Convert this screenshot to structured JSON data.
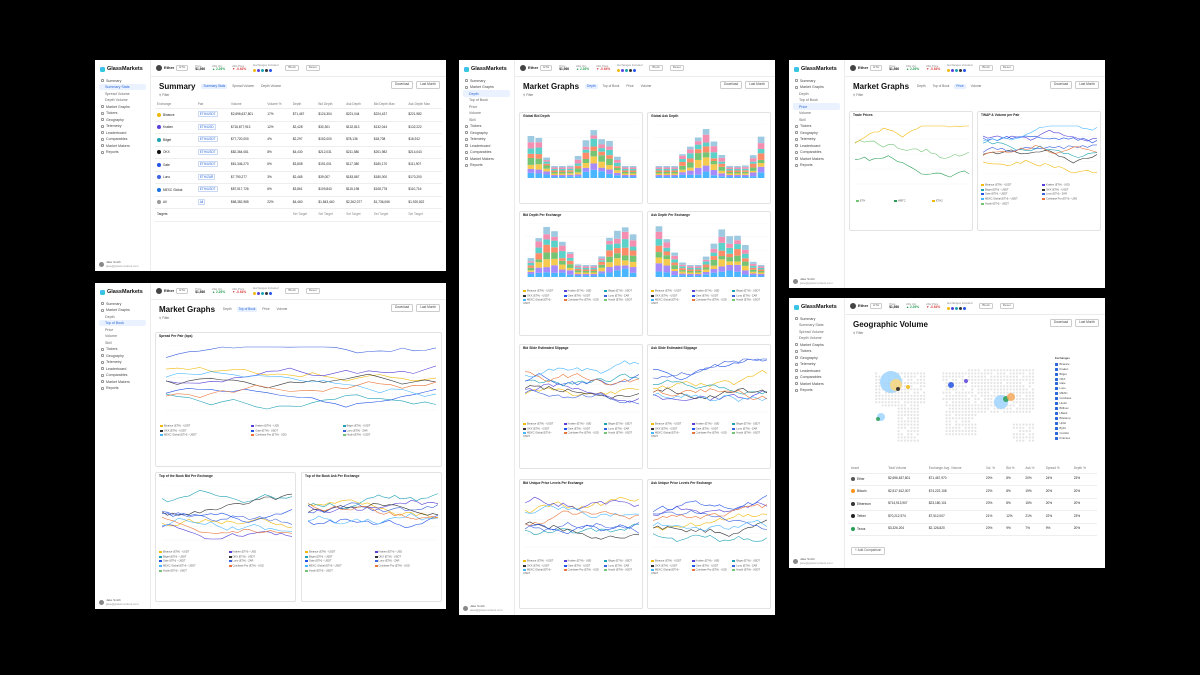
{
  "app": {
    "name": "GlassMarkets",
    "user": "Jake Smith",
    "user_sub": "jake@glassmarkets.com"
  },
  "topbar": {
    "asset": "Ether",
    "asset_tag": "ETH",
    "price_label": "Price",
    "price": "$1,566",
    "change_label": "24H Vol.",
    "change": "▲ 2.26%",
    "vol_label": "24H Price",
    "vol": "▼ -0.64%",
    "exch_label": "Exchanges Included",
    "extra": [
      "Block",
      "Reset"
    ]
  },
  "nav": [
    {
      "label": "Summary"
    },
    {
      "label": "Summary Stats",
      "sub": true
    },
    {
      "label": "Spread Volume",
      "sub": true
    },
    {
      "label": "Depth Volume",
      "sub": true
    },
    {
      "label": "Market Graphs"
    },
    {
      "label": "Tickers"
    },
    {
      "label": "Geography"
    },
    {
      "label": "Telemetry"
    },
    {
      "label": "Leaderboard"
    },
    {
      "label": "Comparables"
    },
    {
      "label": "Market Makers"
    },
    {
      "label": "Reports"
    }
  ],
  "nav_graphs": [
    {
      "label": "Summary"
    },
    {
      "label": "Market Graphs"
    },
    {
      "label": "Depth",
      "sub": true
    },
    {
      "label": "Top of Book",
      "sub": true
    },
    {
      "label": "Price",
      "sub": true
    },
    {
      "label": "Volume",
      "sub": true
    },
    {
      "label": "Skill",
      "sub": true
    },
    {
      "label": "Tickers"
    },
    {
      "label": "Geography"
    },
    {
      "label": "Telemetry"
    },
    {
      "label": "Leaderboard"
    },
    {
      "label": "Comparables"
    },
    {
      "label": "Market Makers"
    },
    {
      "label": "Reports"
    }
  ],
  "buttons": {
    "download": "Download",
    "last_month": "Last Month",
    "filter": "Filter"
  },
  "summary": {
    "title": "Summary",
    "tabs": [
      "Summary Stats",
      "Spread Volume",
      "Depth Volume"
    ],
    "headers": [
      "Exchange",
      "Pair",
      "Volume",
      "Volume %",
      "Depth",
      "Bid Depth",
      "Ask Depth",
      "Bid Depth Max",
      "Ask Depth Max"
    ],
    "rows": [
      {
        "name": "Binance",
        "pair": "ETH/USDT",
        "volume": "$2,696,637,801",
        "pct": "17%",
        "depth": "$71,467",
        "bid": "$124,304",
        "ask": "$221,044",
        "bmax": "$224,437",
        "amax": "$221,982",
        "color": "#f0b90b"
      },
      {
        "name": "Kraken",
        "pair": "ETH/USD",
        "volume": "$716,877,913",
        "pct": "12%",
        "depth": "$2,428",
        "bid": "$30,301",
        "ask": "$132,813",
        "bmax": "$132,044",
        "amax": "$132,222",
        "color": "#5741d9"
      },
      {
        "name": "Bitget",
        "pair": "ETH/USDT",
        "volume": "$77,720,000",
        "pct": "4%",
        "depth": "$2,297",
        "bid": "$152,000",
        "ask": "$78,136",
        "bmax": "$18,708",
        "amax": "$18,912",
        "color": "#1da2b4"
      },
      {
        "name": "OKX",
        "pair": "ETH/USDT",
        "volume": "$82,364,061",
        "pct": "8%",
        "depth": "$4,430",
        "bid": "$212,031",
        "ask": "$211,580",
        "bmax": "$201,982",
        "amax": "$214,043",
        "color": "#111111"
      },
      {
        "name": "Gate",
        "pair": "ETH/USDT",
        "volume": "$61,346,270",
        "pct": "6%",
        "depth": "$3,808",
        "bid": "$191,001",
        "ask": "$117,380",
        "bmax": "$180,170",
        "amax": "$111,907",
        "color": "#2354e6"
      },
      {
        "name": "Luno",
        "pair": "ETH/ZAR",
        "volume": "$7,790,277",
        "pct": "3%",
        "depth": "$2,465",
        "bid": "$39,007",
        "ask": "$183,867",
        "bmax": "$180,000",
        "amax": "$170,200",
        "color": "#3d63dd"
      },
      {
        "name": "MEXC Global",
        "pair": "ETH/USDT",
        "volume": "$87,517,726",
        "pct": "6%",
        "depth": "$3,861",
        "bid": "$109,843",
        "ask": "$115,198",
        "bmax": "$108,778",
        "amax": "$110,716",
        "color": "#1972e2"
      },
      {
        "name": "All",
        "pair": "All",
        "volume": "$68,382,985",
        "pct": "22%",
        "depth": "$4,460",
        "bid": "$1,843,440",
        "ask": "$2,262,077",
        "bmax": "$1,736,066",
        "amax": "$1,920,822",
        "color": "#999999"
      }
    ],
    "targets_label": "Targets",
    "set_target": "Set Target"
  },
  "graphs": {
    "title": "Market Graphs",
    "tabs": [
      "Depth",
      "Top of Book",
      "Price",
      "Volume"
    ],
    "depth_panels": [
      "Global Bid Depth",
      "Global Ask Depth",
      "Bid Depth Per Exchange",
      "Ask Depth Per Exchange",
      "Bid Slide Estimated Slippage",
      "Ask Slide Estimated Slippage",
      "Bid Unique Price Levels Per Exchange",
      "Ask Unique Price Levels Per Exchange"
    ],
    "tob_panels": [
      "Spread Per Pair (bps)",
      "Top of the Book Bid Per Exchange",
      "Top of the Book Ask Per Exchange"
    ],
    "price_panels": [
      "Trade Prices",
      "TWAP & Volume per Pair"
    ],
    "unit_tag": "(ETH)"
  },
  "legend": [
    {
      "label": "Binance (ETH) - USDT",
      "color": "#f0b90b"
    },
    {
      "label": "Kraken (ETH) - USD",
      "color": "#5741d9"
    },
    {
      "label": "Bitget (ETH) - USDT",
      "color": "#1da2b4"
    },
    {
      "label": "OKX (ETH) - USDT",
      "color": "#333333"
    },
    {
      "label": "Gate (ETH) - USDT",
      "color": "#2354e6"
    },
    {
      "label": "Luno (ETH) - ZAR",
      "color": "#3d63dd"
    },
    {
      "label": "MEXC Global (ETH) - USDT",
      "color": "#4ab6ff"
    },
    {
      "label": "Coinbase Pro (ETH) - USD",
      "color": "#e8763a"
    },
    {
      "label": "Huobi (ETH) - USDT",
      "color": "#74c476"
    }
  ],
  "price_legend": [
    "ETH",
    "WBTC",
    "ETH2"
  ],
  "geo": {
    "title": "Geographic Volume",
    "list_title": "Exchanges",
    "list": [
      "Binance",
      "Kraken",
      "Bitget",
      "OKX",
      "Gate",
      "Luno",
      "MEXC",
      "Coinbase",
      "Huobi",
      "Bitfinex",
      "LBank",
      "Bitstamp",
      "Upbit",
      "Bybit",
      "Coinlist",
      "Poloniex"
    ],
    "table_headers": [
      "Asset",
      "Total Volume",
      "Exchange Avg. Volume",
      "Vol. %",
      "Bid %",
      "Ask %",
      "Spread %",
      "Depth %"
    ],
    "rows": [
      {
        "name": "Ether",
        "total": "$2,696,637,801",
        "avg": "$71,467,970",
        "v": "20%",
        "b": "8%",
        "a": "20%",
        "s": "24%",
        "d": "23%",
        "color": "#555555"
      },
      {
        "name": "Bitcoin",
        "total": "$2,517,612,007",
        "avg": "$74,222,108",
        "v": "22%",
        "b": "8%",
        "a": "19%",
        "s": "20%",
        "d": "20%",
        "color": "#f7931a"
      },
      {
        "name": "Ethereum",
        "total": "$714,913,907",
        "avg": "$23,180,101",
        "v": "20%",
        "b": "8%",
        "a": "15%",
        "s": "20%",
        "d": "20%",
        "color": "#333333"
      },
      {
        "name": "Tether",
        "total": "$70,212,974",
        "avg": "$7,512,007",
        "v": "21%",
        "b": "12%",
        "a": "21%",
        "s": "22%",
        "d": "23%",
        "color": "#222222"
      },
      {
        "name": "Tezos",
        "total": "$3,326,204",
        "avg": "$2,126,820",
        "v": "20%",
        "b": "9%",
        "a": "7%",
        "s": "9%",
        "d": "20%",
        "color": "#2a9d55"
      }
    ],
    "add_label": "+ Add Comparison"
  }
}
